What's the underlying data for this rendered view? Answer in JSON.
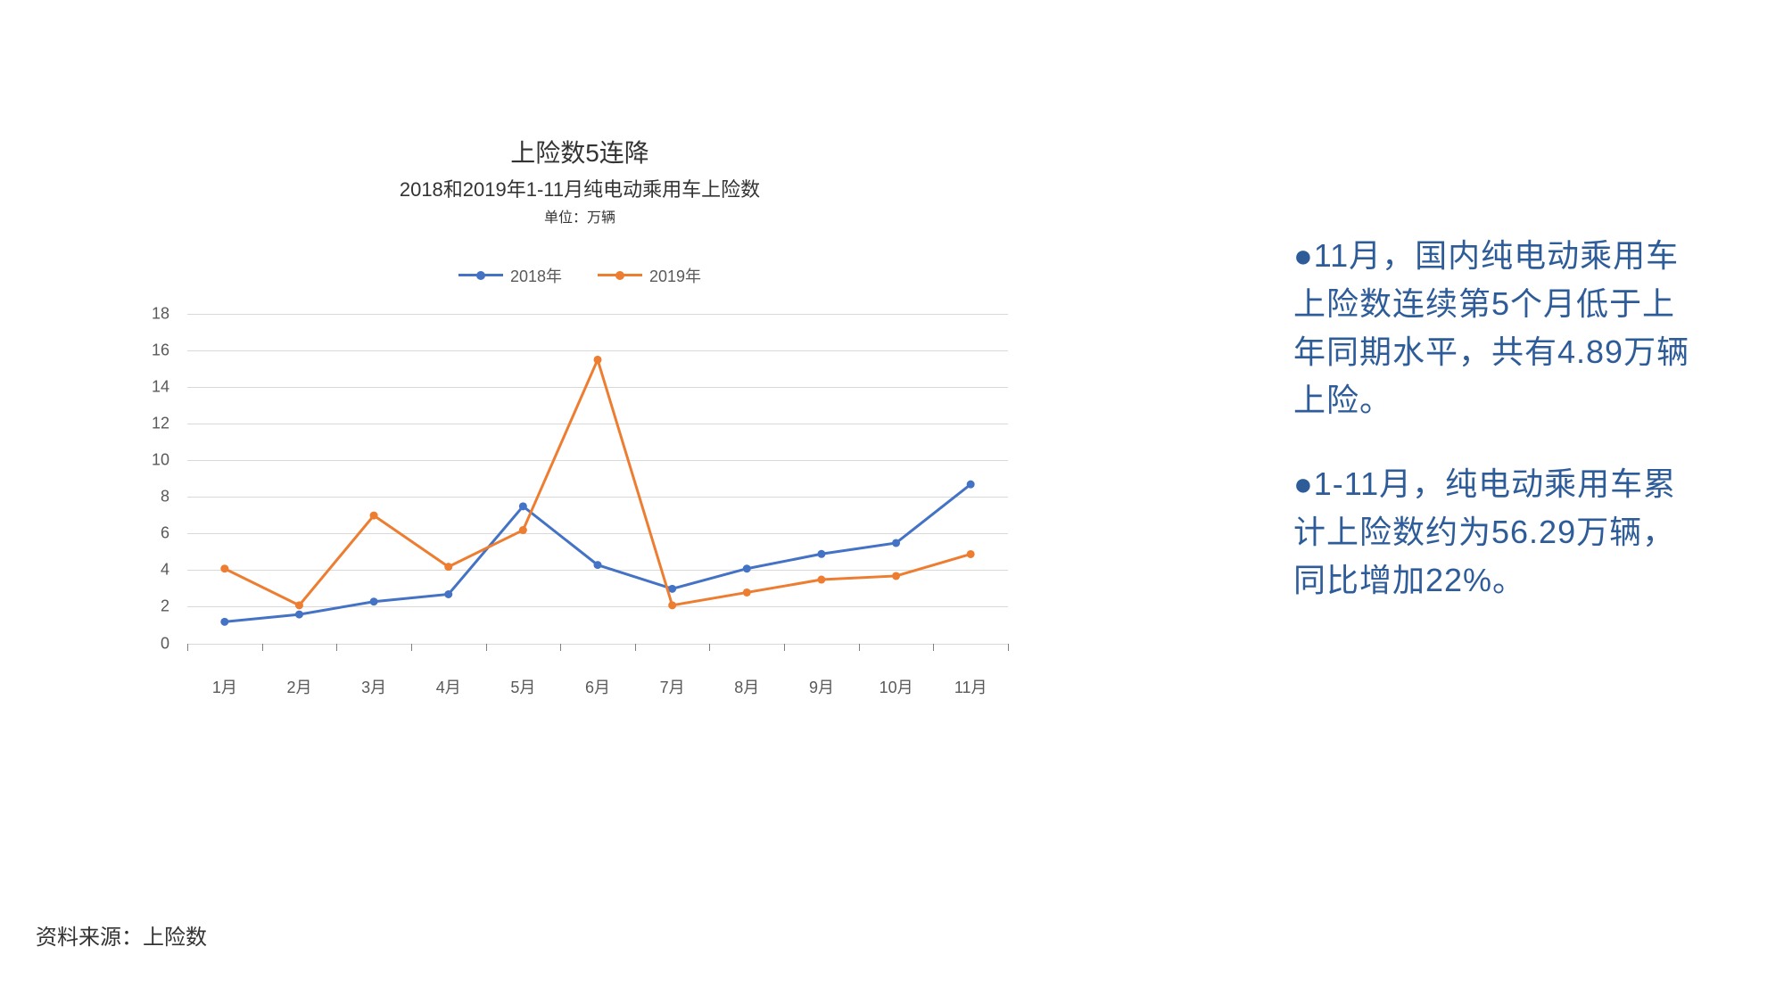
{
  "chart": {
    "type": "line",
    "title": "上险数5连降",
    "subtitle": "2018和2019年1-11月纯电动乘用车上险数",
    "unit": "单位：万辆",
    "categories": [
      "1月",
      "2月",
      "3月",
      "4月",
      "5月",
      "6月",
      "7月",
      "8月",
      "9月",
      "10月",
      "11月"
    ],
    "series": [
      {
        "name": "2018年",
        "color": "#4472c4",
        "values": [
          1.2,
          1.6,
          2.3,
          2.7,
          7.5,
          4.3,
          3.0,
          4.1,
          4.9,
          5.5,
          8.7
        ]
      },
      {
        "name": "2019年",
        "color": "#ed7d31",
        "values": [
          4.1,
          2.1,
          7.0,
          4.2,
          6.2,
          15.5,
          2.1,
          2.8,
          3.5,
          3.7,
          4.89
        ]
      }
    ],
    "ylim": [
      0,
      18
    ],
    "ytick_step": 2,
    "grid_color": "#d9d9d9",
    "axis_label_color": "#595959",
    "background_color": "#ffffff",
    "line_width": 3,
    "marker_size": 9,
    "marker_style": "circle",
    "title_fontsize": 28,
    "subtitle_fontsize": 22,
    "unit_fontsize": 16,
    "tick_fontsize": 18
  },
  "sidebar": {
    "bullet_char": "●",
    "text_color": "#2e5c99",
    "paragraphs": [
      "11月，国内纯电动乘用车上险数连续第5个月低于上年同期水平，共有4.89万辆上险。",
      "1-11月，纯电动乘用车累计上险数约为56.29万辆，同比增加22%。"
    ],
    "fontsize": 36
  },
  "footer": {
    "label": "资料来源：上险数",
    "fontsize": 24
  }
}
